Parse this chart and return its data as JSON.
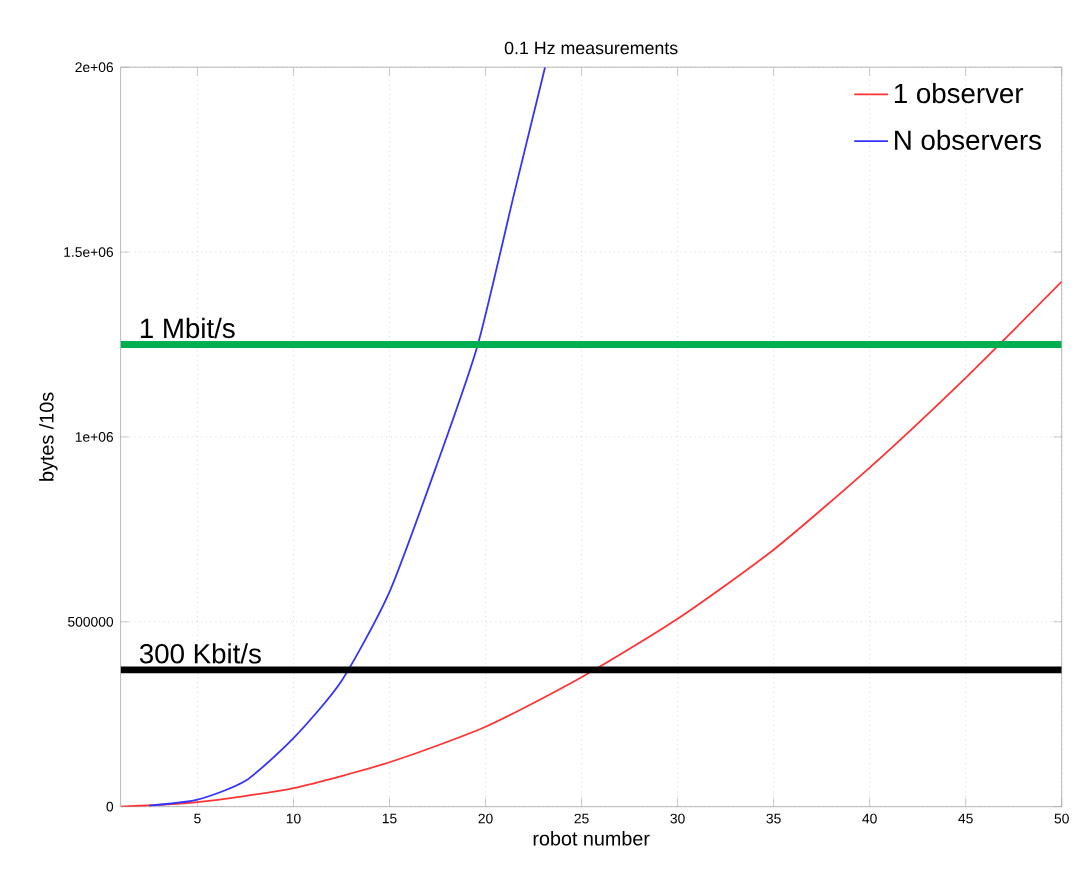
{
  "chart_data": {
    "type": "line",
    "title": "0.1 Hz measurements",
    "xlabel": "robot number",
    "ylabel": "bytes /10s",
    "xlim": [
      1,
      50
    ],
    "xticks": [
      5,
      10,
      15,
      20,
      25,
      30,
      35,
      40,
      45,
      50
    ],
    "ylim": [
      0,
      2000000
    ],
    "yticks": [
      0,
      500000,
      {
        "value": 1000000,
        "label": "1e+06"
      },
      {
        "value": 1500000,
        "label": "1.5e+06"
      },
      {
        "value": 2000000,
        "label": "2e+06"
      }
    ],
    "grid": true,
    "legend": "top right",
    "series": [
      {
        "name": "1 observer",
        "color": "#ff3333",
        "x": [
          1,
          5,
          10,
          15,
          20,
          25,
          30,
          35,
          40,
          45,
          50
        ],
        "values": [
          0,
          12000,
          50000,
          120000,
          216000,
          350000,
          508000,
          695000,
          917000,
          1160000,
          1420000
        ]
      },
      {
        "name": "N observers",
        "color": "#3333ff",
        "x": [
          2.5,
          5,
          7.5,
          10,
          12.5,
          15,
          17.5,
          19.6,
          21.5,
          23.1
        ],
        "values": [
          3000,
          19000,
          70000,
          185000,
          340000,
          581000,
          930000,
          1250000,
          1660000,
          2000000
        ]
      }
    ],
    "ref_lines": [
      {
        "axis": "y",
        "value": 1250000,
        "label": "1 Mbit/s",
        "color": "#00b050"
      },
      {
        "axis": "y",
        "value": 370000,
        "label": "300 Kbit/s",
        "color": "#000000"
      }
    ]
  }
}
